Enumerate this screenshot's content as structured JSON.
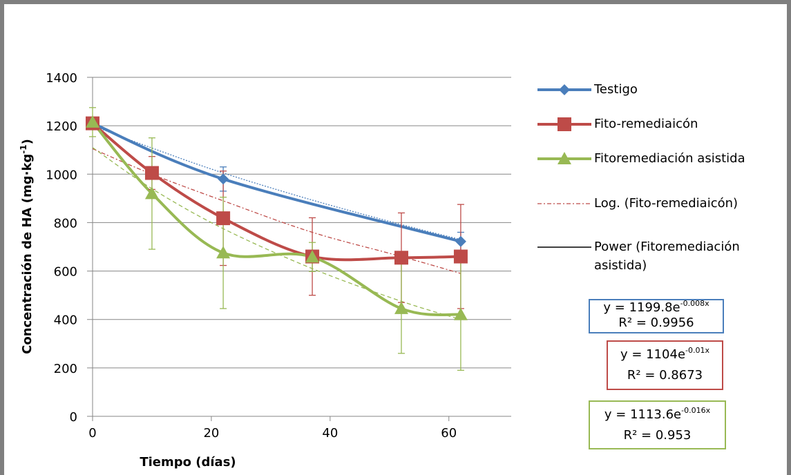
{
  "chart_data": {
    "type": "line",
    "x_label": "Tiempo (días)",
    "y_label": {
      "main": "Concentración de HA (mg·kg",
      "sup": "-1",
      "end": ")"
    },
    "xlim": [
      0,
      70.5
    ],
    "xticks": [
      0,
      20,
      40,
      60
    ],
    "ylim": [
      0,
      1400
    ],
    "yticks": [
      0,
      200,
      400,
      600,
      800,
      1000,
      1200,
      1400
    ],
    "grid": true,
    "series": [
      {
        "name": "Testigo",
        "color": "#4a7ebb",
        "marker": "diamond",
        "x": [
          0,
          22,
          62
        ],
        "values": [
          1210,
          980,
          722
        ],
        "errors": [
          null,
          50,
          38
        ]
      },
      {
        "name": "Fito-remediaicón",
        "color": "#be4b48",
        "marker": "square",
        "x": [
          0,
          10,
          22,
          37,
          52,
          62
        ],
        "values": [
          1210,
          1005,
          818,
          660,
          655,
          660
        ],
        "errors": [
          null,
          68,
          195,
          160,
          185,
          215
        ]
      },
      {
        "name": "Fitoremediación asistida",
        "color": "#98b954",
        "marker": "triangle",
        "x": [
          0,
          10,
          22,
          37,
          52,
          62
        ],
        "values": [
          1215,
          920,
          675,
          658,
          445,
          420
        ],
        "errors": [
          60,
          230,
          230,
          60,
          185,
          230
        ]
      }
    ],
    "trendlines": [
      {
        "color": "#4a7ebb",
        "style": "dotted",
        "x": [
          0,
          10,
          22,
          37,
          52,
          62
        ],
        "values": [
          1200,
          1108,
          1005,
          893,
          792,
          730
        ]
      },
      {
        "name": "Log. (Fito-remediaicón)",
        "color": "#be4b48",
        "style": "dashdot",
        "legend_color": "#be4b48",
        "x": [
          0,
          10,
          22,
          37,
          52,
          62
        ],
        "values": [
          1105,
          1000,
          890,
          760,
          660,
          590
        ]
      },
      {
        "name": "Power (Fitoremediación asistida)",
        "color": "#98b954",
        "style": "dashed",
        "legend_color": "#000000",
        "x": [
          0,
          10,
          22,
          37,
          52,
          62
        ],
        "values": [
          1110,
          940,
          775,
          610,
          475,
          400
        ]
      }
    ],
    "equations": [
      {
        "color": "#4a7ebb",
        "base": "y = 1199.8e",
        "exponent": "-0.008x",
        "r2": "R² = 0.9956"
      },
      {
        "color": "#be4b48",
        "base": "y = 1104e",
        "exponent": "-0.01x",
        "r2": "R² = 0.8673"
      },
      {
        "color": "#98b954",
        "base": "y = 1113.6e",
        "exponent": "-0.016x",
        "r2": "R² = 0.953"
      }
    ]
  }
}
